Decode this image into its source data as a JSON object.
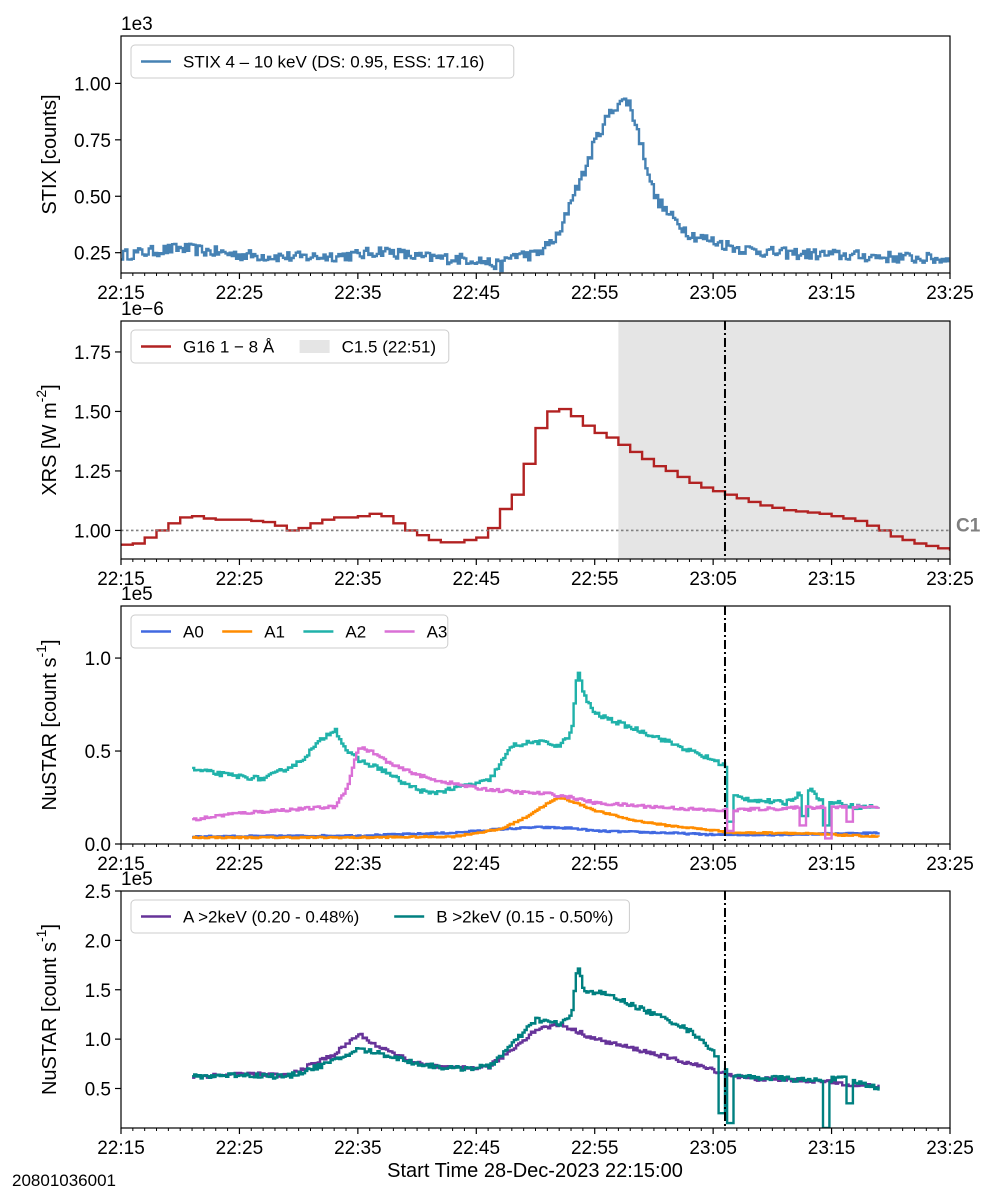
{
  "figure": {
    "xlabel": "Start Time 28-Dec-2023 22:15:00",
    "footnote": "20801036001",
    "x_ticks": [
      "22:15",
      "22:25",
      "22:35",
      "22:45",
      "22:55",
      "23:05",
      "23:15",
      "23:25"
    ],
    "flare_peak_time": "22:51"
  },
  "chart_data": [
    {
      "type": "line",
      "panel": "stix",
      "ylabel": "STIX [counts]",
      "offset_text": "1e3",
      "xlim": [
        "22:15",
        "23:25"
      ],
      "ylim": [
        0.16,
        1.21
      ],
      "y_ticks": [
        "0.25",
        "0.50",
        "0.75",
        "1.00"
      ],
      "y_tick_values": [
        0.25,
        0.5,
        0.75,
        1.0
      ],
      "legend_placement": "top-left",
      "series": [
        {
          "name": "STIX 4 – 10 keV (DS: 0.95, ESS: 17.16)",
          "color": "#4682b4",
          "step": true,
          "noise": 0.025,
          "points": [
            [
              0,
              0.24
            ],
            [
              5,
              0.27
            ],
            [
              10,
              0.24
            ],
            [
              15,
              0.23
            ],
            [
              20,
              0.24
            ],
            [
              22,
              0.26
            ],
            [
              25,
              0.23
            ],
            [
              30,
              0.22
            ],
            [
              32,
              0.19
            ],
            [
              33,
              0.24
            ],
            [
              35,
              0.24
            ],
            [
              37,
              0.33
            ],
            [
              38,
              0.5
            ],
            [
              39,
              0.6
            ],
            [
              40,
              0.75
            ],
            [
              41,
              0.85
            ],
            [
              42,
              0.92
            ],
            [
              42.8,
              0.92
            ],
            [
              43.5,
              0.8
            ],
            [
              44,
              0.7
            ],
            [
              45,
              0.5
            ],
            [
              46,
              0.43
            ],
            [
              47,
              0.38
            ],
            [
              48,
              0.33
            ],
            [
              50,
              0.3
            ],
            [
              52,
              0.27
            ],
            [
              55,
              0.25
            ],
            [
              60,
              0.24
            ],
            [
              65,
              0.23
            ],
            [
              70,
              0.22
            ]
          ]
        }
      ]
    },
    {
      "type": "line",
      "panel": "xrs",
      "ylabel": "XRS [W m^-2]",
      "offset_text": "1e−6",
      "xlim": [
        "22:15",
        "23:25"
      ],
      "ylim": [
        0.88,
        1.88
      ],
      "y_ticks": [
        "1.00",
        "1.25",
        "1.50",
        "1.75"
      ],
      "y_tick_values": [
        1.0,
        1.25,
        1.5,
        1.75
      ],
      "c1_threshold": 1.0,
      "c1_label": "C1",
      "shaded_interval": {
        "label": "C1.5 (22:51)",
        "start": 42,
        "end": 70,
        "color": "#d3d3d3"
      },
      "vline": 51,
      "legend_placement": "top-left",
      "series": [
        {
          "name": "G16 1 − 8 Å",
          "color": "#b22222",
          "step": true,
          "points": [
            [
              0,
              0.94
            ],
            [
              1,
              0.945
            ],
            [
              2,
              0.97
            ],
            [
              3,
              1.0
            ],
            [
              4,
              1.03
            ],
            [
              5,
              1.055
            ],
            [
              6,
              1.06
            ],
            [
              7,
              1.05
            ],
            [
              8,
              1.045
            ],
            [
              9,
              1.045
            ],
            [
              10,
              1.045
            ],
            [
              11,
              1.04
            ],
            [
              12,
              1.035
            ],
            [
              13,
              1.02
            ],
            [
              14,
              1.0
            ],
            [
              15,
              1.01
            ],
            [
              16,
              1.03
            ],
            [
              17,
              1.045
            ],
            [
              18,
              1.055
            ],
            [
              19,
              1.055
            ],
            [
              20,
              1.06
            ],
            [
              21,
              1.07
            ],
            [
              22,
              1.06
            ],
            [
              23,
              1.03
            ],
            [
              24,
              1.0
            ],
            [
              25,
              0.98
            ],
            [
              26,
              0.96
            ],
            [
              27,
              0.95
            ],
            [
              28,
              0.95
            ],
            [
              29,
              0.96
            ],
            [
              30,
              0.97
            ],
            [
              31,
              1.01
            ],
            [
              32,
              1.09
            ],
            [
              33,
              1.15
            ],
            [
              34,
              1.28
            ],
            [
              35,
              1.43
            ],
            [
              36,
              1.5
            ],
            [
              37,
              1.51
            ],
            [
              38,
              1.48
            ],
            [
              39,
              1.44
            ],
            [
              40,
              1.41
            ],
            [
              41,
              1.39
            ],
            [
              42,
              1.36
            ],
            [
              43,
              1.33
            ],
            [
              44,
              1.3
            ],
            [
              45,
              1.27
            ],
            [
              46,
              1.25
            ],
            [
              47,
              1.225
            ],
            [
              48,
              1.2
            ],
            [
              49,
              1.18
            ],
            [
              50,
              1.165
            ],
            [
              51,
              1.15
            ],
            [
              52,
              1.135
            ],
            [
              53,
              1.12
            ],
            [
              54,
              1.105
            ],
            [
              55,
              1.095
            ],
            [
              56,
              1.085
            ],
            [
              57,
              1.08
            ],
            [
              58,
              1.075
            ],
            [
              59,
              1.07
            ],
            [
              60,
              1.06
            ],
            [
              61,
              1.05
            ],
            [
              62,
              1.04
            ],
            [
              63,
              1.02
            ],
            [
              64,
              1.0
            ],
            [
              65,
              0.975
            ],
            [
              66,
              0.96
            ],
            [
              67,
              0.945
            ],
            [
              68,
              0.935
            ],
            [
              69,
              0.925
            ],
            [
              70,
              0.915
            ]
          ]
        }
      ]
    },
    {
      "type": "line",
      "panel": "nustar-modules",
      "ylabel": "NuSTAR [count s^-1]",
      "offset_text": "1e5",
      "xlim": [
        "22:15",
        "23:25"
      ],
      "ylim": [
        0,
        1.28
      ],
      "y_ticks": [
        "0.0",
        "0.5",
        "1.0"
      ],
      "y_tick_values": [
        0,
        0.5,
        1.0
      ],
      "vline": 51,
      "legend_placement": "top-left",
      "series": [
        {
          "name": "A0",
          "color": "#4169e1",
          "step": true,
          "noise": 0.004,
          "points": [
            [
              6,
              0.04
            ],
            [
              20,
              0.045
            ],
            [
              28,
              0.06
            ],
            [
              32,
              0.08
            ],
            [
              35,
              0.09
            ],
            [
              38,
              0.085
            ],
            [
              40,
              0.07
            ],
            [
              46,
              0.06
            ],
            [
              50,
              0.05
            ],
            [
              55,
              0.05
            ],
            [
              64,
              0.06
            ]
          ],
          "dips": []
        },
        {
          "name": "A1",
          "color": "#ff8c00",
          "step": true,
          "noise": 0.004,
          "points": [
            [
              6,
              0.035
            ],
            [
              20,
              0.035
            ],
            [
              28,
              0.04
            ],
            [
              32,
              0.08
            ],
            [
              34,
              0.14
            ],
            [
              36,
              0.22
            ],
            [
              37,
              0.25
            ],
            [
              38,
              0.23
            ],
            [
              40,
              0.18
            ],
            [
              43,
              0.13
            ],
            [
              46,
              0.1
            ],
            [
              49,
              0.08
            ],
            [
              52,
              0.06
            ],
            [
              56,
              0.06
            ],
            [
              64,
              0.04
            ]
          ],
          "dips": []
        },
        {
          "name": "A2",
          "color": "#20b2aa",
          "step": true,
          "noise": 0.012,
          "points": [
            [
              6,
              0.4
            ],
            [
              9,
              0.37
            ],
            [
              12,
              0.35
            ],
            [
              15,
              0.44
            ],
            [
              17,
              0.57
            ],
            [
              18,
              0.62
            ],
            [
              19,
              0.5
            ],
            [
              20,
              0.45
            ],
            [
              22,
              0.4
            ],
            [
              24,
              0.32
            ],
            [
              26,
              0.27
            ],
            [
              28,
              0.3
            ],
            [
              31,
              0.34
            ],
            [
              33,
              0.53
            ],
            [
              35,
              0.55
            ],
            [
              37,
              0.53
            ],
            [
              38,
              0.6
            ],
            [
              38.5,
              0.95
            ],
            [
              39,
              0.8
            ],
            [
              40,
              0.7
            ],
            [
              42,
              0.65
            ],
            [
              45,
              0.58
            ],
            [
              48,
              0.5
            ],
            [
              50,
              0.45
            ],
            [
              51,
              0.42
            ],
            [
              51.5,
              0.26
            ],
            [
              53,
              0.24
            ],
            [
              56,
              0.22
            ],
            [
              58,
              0.3
            ],
            [
              59,
              0.24
            ],
            [
              62,
              0.2
            ],
            [
              64,
              0.2
            ]
          ],
          "dips": [
            [
              51.3,
              0.12
            ],
            [
              57.7,
              0.15
            ],
            [
              59.4,
              0.1
            ]
          ]
        },
        {
          "name": "A3",
          "color": "#da70d6",
          "step": true,
          "noise": 0.008,
          "points": [
            [
              6,
              0.13
            ],
            [
              9,
              0.16
            ],
            [
              13,
              0.18
            ],
            [
              18,
              0.2
            ],
            [
              19,
              0.3
            ],
            [
              20,
              0.52
            ],
            [
              21,
              0.5
            ],
            [
              23,
              0.42
            ],
            [
              26,
              0.35
            ],
            [
              30,
              0.3
            ],
            [
              33,
              0.28
            ],
            [
              36,
              0.27
            ],
            [
              38,
              0.25
            ],
            [
              40,
              0.22
            ],
            [
              45,
              0.2
            ],
            [
              50,
              0.18
            ],
            [
              55,
              0.19
            ],
            [
              60,
              0.2
            ],
            [
              64,
              0.2
            ]
          ],
          "dips": [
            [
              51.3,
              0.07
            ],
            [
              57.5,
              0.1
            ],
            [
              59.6,
              0.03
            ],
            [
              61.5,
              0.12
            ]
          ]
        }
      ]
    },
    {
      "type": "line",
      "panel": "nustar-total",
      "ylabel": "NuSTAR [count s^-1]",
      "offset_text": "1e5",
      "xlim": [
        "22:15",
        "23:25"
      ],
      "ylim": [
        0.1,
        2.5
      ],
      "y_ticks": [
        "0.5",
        "1.0",
        "1.5",
        "2.0",
        "2.5"
      ],
      "y_tick_values": [
        0.5,
        1.0,
        1.5,
        2.0,
        2.5
      ],
      "vline": 51,
      "legend_placement": "top-left",
      "series": [
        {
          "name": "A >2keV (0.20 - 0.48%)",
          "color": "#663399",
          "step": true,
          "noise": 0.02,
          "points": [
            [
              6,
              0.62
            ],
            [
              10,
              0.65
            ],
            [
              14,
              0.63
            ],
            [
              18,
              0.85
            ],
            [
              20,
              1.05
            ],
            [
              22,
              0.9
            ],
            [
              25,
              0.75
            ],
            [
              28,
              0.7
            ],
            [
              31,
              0.72
            ],
            [
              33,
              0.9
            ],
            [
              35,
              1.1
            ],
            [
              37,
              1.15
            ],
            [
              38,
              1.1
            ],
            [
              40,
              1.0
            ],
            [
              45,
              0.85
            ],
            [
              49,
              0.72
            ],
            [
              51,
              0.65
            ],
            [
              53,
              0.6
            ],
            [
              58,
              0.58
            ],
            [
              64,
              0.52
            ]
          ],
          "dips": []
        },
        {
          "name": "B >2keV (0.15 - 0.50%)",
          "color": "#008080",
          "step": true,
          "noise": 0.025,
          "points": [
            [
              6,
              0.62
            ],
            [
              10,
              0.64
            ],
            [
              14,
              0.62
            ],
            [
              18,
              0.78
            ],
            [
              20,
              0.9
            ],
            [
              22,
              0.85
            ],
            [
              25,
              0.75
            ],
            [
              28,
              0.7
            ],
            [
              31,
              0.72
            ],
            [
              33,
              0.95
            ],
            [
              35,
              1.2
            ],
            [
              37,
              1.15
            ],
            [
              38,
              1.25
            ],
            [
              38.5,
              1.75
            ],
            [
              39,
              1.5
            ],
            [
              41,
              1.45
            ],
            [
              44,
              1.3
            ],
            [
              47,
              1.15
            ],
            [
              49,
              1.0
            ],
            [
              50,
              0.85
            ],
            [
              51,
              0.7
            ],
            [
              52,
              0.62
            ],
            [
              56,
              0.6
            ],
            [
              58,
              0.58
            ],
            [
              61,
              0.6
            ],
            [
              64,
              0.5
            ]
          ],
          "dips": [
            [
              50.7,
              0.25
            ],
            [
              51.4,
              0.15
            ],
            [
              59.4,
              0.1
            ],
            [
              61.5,
              0.35
            ]
          ]
        }
      ]
    }
  ]
}
